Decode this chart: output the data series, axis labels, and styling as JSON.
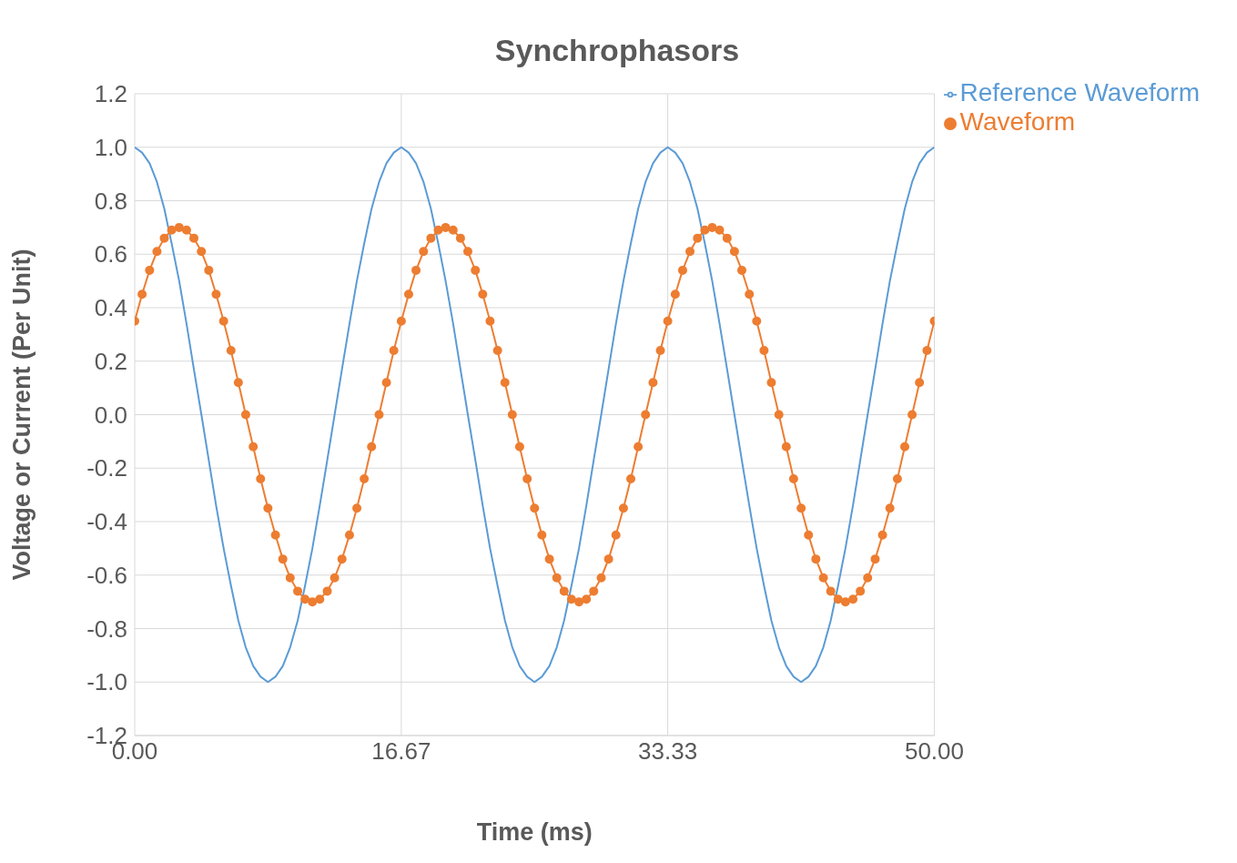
{
  "chart_data": {
    "type": "line",
    "title": "Synchrophasors",
    "xlabel": "Time (ms)",
    "ylabel": "Voltage or Current (Per Unit)",
    "x": [
      0,
      0.46,
      0.93,
      1.39,
      1.85,
      2.31,
      2.78,
      3.24,
      3.7,
      4.17,
      4.63,
      5.09,
      5.56,
      6.02,
      6.48,
      6.94,
      7.41,
      7.87,
      8.33,
      8.8,
      9.26,
      9.72,
      10.19,
      10.65,
      11.11,
      11.57,
      12.04,
      12.5,
      12.96,
      13.43,
      13.89,
      14.35,
      14.81,
      15.28,
      15.74,
      16.2,
      16.67,
      17.13,
      17.59,
      18.06,
      18.52,
      18.98,
      19.44,
      19.91,
      20.37,
      20.83,
      21.3,
      21.76,
      22.22,
      22.69,
      23.15,
      23.61,
      24.07,
      24.54,
      25.0,
      25.46,
      25.93,
      26.39,
      26.85,
      27.31,
      27.78,
      28.24,
      28.7,
      29.17,
      29.63,
      30.09,
      30.56,
      31.02,
      31.48,
      31.94,
      32.41,
      32.87,
      33.33,
      33.8,
      34.26,
      34.72,
      35.19,
      35.65,
      36.11,
      36.57,
      37.04,
      37.5,
      37.96,
      38.43,
      38.89,
      39.35,
      39.81,
      40.28,
      40.74,
      41.2,
      41.67,
      42.13,
      42.59,
      43.06,
      43.52,
      43.98,
      44.44,
      44.91,
      45.37,
      45.83,
      46.3,
      46.76,
      47.22,
      47.69,
      48.15,
      48.61,
      49.07,
      49.54,
      50.0
    ],
    "series": [
      {
        "name": "Reference Waveform",
        "color": "#5b9bd5",
        "marker": "none",
        "values": [
          1,
          0.98,
          0.94,
          0.87,
          0.77,
          0.64,
          0.5,
          0.34,
          0.17,
          0,
          -0.17,
          -0.34,
          -0.5,
          -0.64,
          -0.77,
          -0.87,
          -0.94,
          -0.98,
          -1,
          -0.98,
          -0.94,
          -0.87,
          -0.77,
          -0.64,
          -0.5,
          -0.34,
          -0.17,
          0,
          0.17,
          0.34,
          0.5,
          0.64,
          0.77,
          0.87,
          0.94,
          0.98,
          1,
          0.98,
          0.94,
          0.87,
          0.77,
          0.64,
          0.5,
          0.34,
          0.17,
          0,
          -0.17,
          -0.34,
          -0.5,
          -0.64,
          -0.77,
          -0.87,
          -0.94,
          -0.98,
          -1,
          -0.98,
          -0.94,
          -0.87,
          -0.77,
          -0.64,
          -0.5,
          -0.34,
          -0.17,
          0,
          0.17,
          0.34,
          0.5,
          0.64,
          0.77,
          0.87,
          0.94,
          0.98,
          1,
          0.98,
          0.94,
          0.87,
          0.77,
          0.64,
          0.5,
          0.34,
          0.17,
          0,
          -0.17,
          -0.34,
          -0.5,
          -0.64,
          -0.77,
          -0.87,
          -0.94,
          -0.98,
          -1,
          -0.98,
          -0.94,
          -0.87,
          -0.77,
          -0.64,
          -0.5,
          -0.34,
          -0.17,
          0,
          0.17,
          0.34,
          0.5,
          0.64,
          0.77,
          0.87,
          0.94,
          0.98,
          1
        ]
      },
      {
        "name": "Waveform",
        "color": "#ed7d31",
        "marker": "circle",
        "values": [
          0.35,
          0.45,
          0.54,
          0.61,
          0.66,
          0.69,
          0.7,
          0.69,
          0.66,
          0.61,
          0.54,
          0.45,
          0.35,
          0.24,
          0.12,
          0,
          -0.12,
          -0.24,
          -0.35,
          -0.45,
          -0.54,
          -0.61,
          -0.66,
          -0.69,
          -0.7,
          -0.69,
          -0.66,
          -0.61,
          -0.54,
          -0.45,
          -0.35,
          -0.24,
          -0.12,
          0,
          0.12,
          0.24,
          0.35,
          0.45,
          0.54,
          0.61,
          0.66,
          0.69,
          0.7,
          0.69,
          0.66,
          0.61,
          0.54,
          0.45,
          0.35,
          0.24,
          0.12,
          0,
          -0.12,
          -0.24,
          -0.35,
          -0.45,
          -0.54,
          -0.61,
          -0.66,
          -0.69,
          -0.7,
          -0.69,
          -0.66,
          -0.61,
          -0.54,
          -0.45,
          -0.35,
          -0.24,
          -0.12,
          0,
          0.12,
          0.24,
          0.35,
          0.45,
          0.54,
          0.61,
          0.66,
          0.69,
          0.7,
          0.69,
          0.66,
          0.61,
          0.54,
          0.45,
          0.35,
          0.24,
          0.12,
          0,
          -0.12,
          -0.24,
          -0.35,
          -0.45,
          -0.54,
          -0.61,
          -0.66,
          -0.69,
          -0.7,
          -0.69,
          -0.66,
          -0.61,
          -0.54,
          -0.45,
          -0.35,
          -0.24,
          -0.12,
          0,
          0.12,
          0.24,
          0.35
        ]
      }
    ],
    "xlim": [
      0,
      50
    ],
    "xticks": [
      {
        "value": 0,
        "label": "0.00"
      },
      {
        "value": 16.67,
        "label": "16.67"
      },
      {
        "value": 33.33,
        "label": "33.33"
      },
      {
        "value": 50,
        "label": "50.00"
      }
    ],
    "ylim": [
      -1.2,
      1.2
    ],
    "yticks": [
      {
        "value": -1.2,
        "label": "-1.2"
      },
      {
        "value": -1,
        "label": "-1.0"
      },
      {
        "value": -0.8,
        "label": "-0.8"
      },
      {
        "value": -0.6,
        "label": "-0.6"
      },
      {
        "value": -0.4,
        "label": "-0.4"
      },
      {
        "value": -0.2,
        "label": "-0.2"
      },
      {
        "value": 0,
        "label": "0.0"
      },
      {
        "value": 0.2,
        "label": "0.2"
      },
      {
        "value": 0.4,
        "label": "0.4"
      },
      {
        "value": 0.6,
        "label": "0.6"
      },
      {
        "value": 0.8,
        "label": "0.8"
      },
      {
        "value": 1,
        "label": "1.0"
      },
      {
        "value": 1.2,
        "label": "1.2"
      }
    ],
    "grid": true,
    "legend": "top right"
  }
}
